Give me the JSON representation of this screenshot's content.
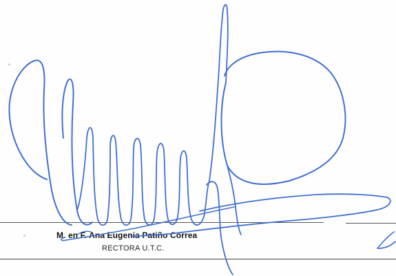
{
  "signature_block": {
    "name": "M. en F. Ana Eugenia Patiño Correa",
    "title": "RECTORA U.T.C."
  },
  "colors": {
    "ink": "#3f6fcf",
    "rule": "#555555",
    "text": "#111111"
  }
}
